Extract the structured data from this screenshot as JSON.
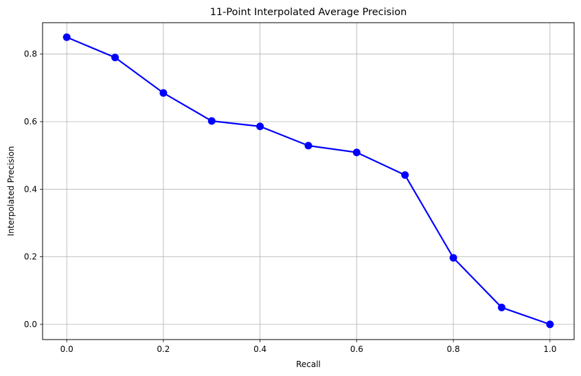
{
  "chart_data": {
    "type": "line",
    "title": "11-Point Interpolated Average Precision",
    "xlabel": "Recall",
    "ylabel": "Interpolated Precision",
    "x": [
      0.0,
      0.1,
      0.2,
      0.3,
      0.4,
      0.5,
      0.6,
      0.7,
      0.8,
      0.9,
      1.0
    ],
    "series": [
      {
        "values": [
          0.85,
          0.79,
          0.685,
          0.602,
          0.586,
          0.529,
          0.509,
          0.442,
          0.197,
          0.05,
          0.0
        ],
        "color": "#0000ff",
        "marker": "circle"
      }
    ],
    "xlim": [
      -0.05,
      1.05
    ],
    "ylim": [
      -0.045,
      0.893
    ],
    "xticks": [
      0.0,
      0.2,
      0.4,
      0.6,
      0.8,
      1.0
    ],
    "xtick_labels": [
      "0.0",
      "0.2",
      "0.4",
      "0.6",
      "0.8",
      "1.0"
    ],
    "yticks": [
      0.0,
      0.2,
      0.4,
      0.6,
      0.8
    ],
    "ytick_labels": [
      "0.0",
      "0.2",
      "0.4",
      "0.6",
      "0.8"
    ],
    "grid": true,
    "grid_color": "#b0b0b0"
  }
}
